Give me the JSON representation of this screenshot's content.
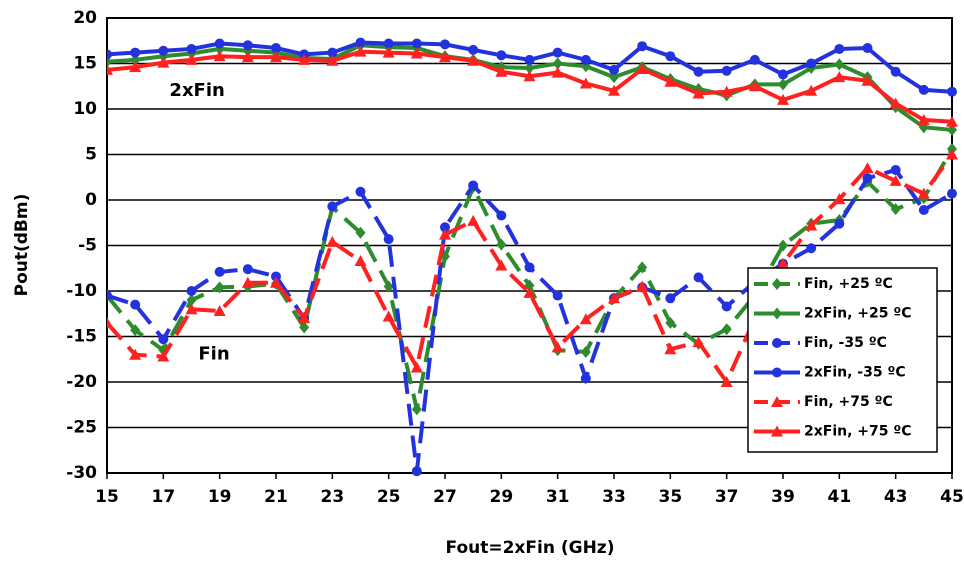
{
  "chart_data": {
    "type": "line",
    "xlabel": "Fout=2xFin (GHz)",
    "ylabel": "Pout(dBm)",
    "annotations": [
      {
        "text": "2xFin",
        "x": 18.2,
        "y": 12
      },
      {
        "text": "Fin",
        "x": 18.8,
        "y": -17
      }
    ],
    "x": [
      15,
      16,
      17,
      18,
      19,
      20,
      21,
      22,
      23,
      24,
      25,
      26,
      27,
      28,
      29,
      30,
      31,
      32,
      33,
      34,
      35,
      36,
      37,
      38,
      39,
      40,
      41,
      42,
      43,
      44,
      45
    ],
    "xlim": [
      15,
      45
    ],
    "xticks": [
      15,
      17,
      19,
      21,
      23,
      25,
      27,
      29,
      31,
      33,
      35,
      37,
      39,
      41,
      43,
      45
    ],
    "ylim": [
      -30,
      20
    ],
    "yticks": [
      -30,
      -25,
      -20,
      -15,
      -10,
      -5,
      0,
      5,
      10,
      15,
      20
    ],
    "grid": true,
    "legend": "lower right",
    "series": [
      {
        "name": "Fin, +25 ºC",
        "color": "#2e8b2e",
        "marker": "diamond",
        "dashed": true,
        "values": [
          -10.5,
          -14.3,
          -16.5,
          -11,
          -9.6,
          -9.5,
          -9.2,
          -14,
          -0.8,
          -3.6,
          -9.5,
          -23,
          -6.2,
          1.4,
          -4.9,
          -9.4,
          -16.5,
          -16.7,
          -10.8,
          -7.4,
          -13.5,
          -15.8,
          -14.2,
          -10.5,
          -5,
          -2.6,
          -2.2,
          2,
          -1,
          0.2,
          5.6
        ]
      },
      {
        "name": "2xFin, +25 ºC",
        "color": "#2e8b2e",
        "marker": "diamond",
        "dashed": false,
        "values": [
          15.2,
          15.4,
          15.8,
          16.1,
          16.6,
          16.4,
          16.2,
          15.6,
          15.5,
          17,
          16.8,
          16.7,
          15.8,
          15.4,
          14.6,
          14.5,
          15,
          14.7,
          13.5,
          14.6,
          13.3,
          12.2,
          11.5,
          12.7,
          12.7,
          14.5,
          14.9,
          13.5,
          10.2,
          8,
          7.7
        ]
      },
      {
        "name": "Fin, -35 ºC",
        "color": "#2233dd",
        "marker": "circle",
        "dashed": true,
        "values": [
          -10.5,
          -11.5,
          -15.3,
          -10,
          -7.9,
          -7.6,
          -8.4,
          -13,
          -0.7,
          0.9,
          -4.3,
          -29.8,
          -3,
          1.6,
          -1.7,
          -7.4,
          -10.5,
          -19.6,
          -10.8,
          -9.6,
          -10.8,
          -8.5,
          -11.7,
          -9,
          -7,
          -5.3,
          -2.6,
          2.4,
          3.3,
          -1.1,
          0.7
        ]
      },
      {
        "name": "2xFin, -35 ºC",
        "color": "#2233dd",
        "marker": "circle",
        "dashed": false,
        "values": [
          16,
          16.2,
          16.4,
          16.6,
          17.2,
          17,
          16.7,
          16,
          16.2,
          17.3,
          17.2,
          17.2,
          17.1,
          16.5,
          15.9,
          15.4,
          16.2,
          15.4,
          14.3,
          16.9,
          15.8,
          14.1,
          14.2,
          15.4,
          13.8,
          15,
          16.6,
          16.7,
          14.1,
          12.1,
          11.9
        ]
      },
      {
        "name": "Fin, +75 ºC",
        "color": "#ff2020",
        "marker": "triangle",
        "dashed": true,
        "values": [
          -13.5,
          -17,
          -17.2,
          -12,
          -12.2,
          -9.1,
          -9.1,
          -13,
          -4.6,
          -6.7,
          -12.8,
          -18.4,
          -3.8,
          -2.3,
          -7.2,
          -10.2,
          -16.2,
          -13.1,
          -10.8,
          -9.5,
          -16.4,
          -15.6,
          -20,
          -13,
          -7,
          -2.8,
          0.1,
          3.5,
          2.1,
          0.7,
          5
        ]
      },
      {
        "name": "2xFin, +75 ºC",
        "color": "#ff2020",
        "marker": "triangle",
        "dashed": false,
        "values": [
          14.3,
          14.6,
          15.1,
          15.4,
          15.8,
          15.7,
          15.7,
          15.4,
          15.3,
          16.3,
          16.2,
          16.1,
          15.7,
          15.3,
          14.1,
          13.6,
          14,
          12.8,
          12,
          14.4,
          13,
          11.7,
          11.9,
          12.5,
          11,
          12,
          13.5,
          13.1,
          10.6,
          8.8,
          8.6
        ]
      }
    ]
  }
}
